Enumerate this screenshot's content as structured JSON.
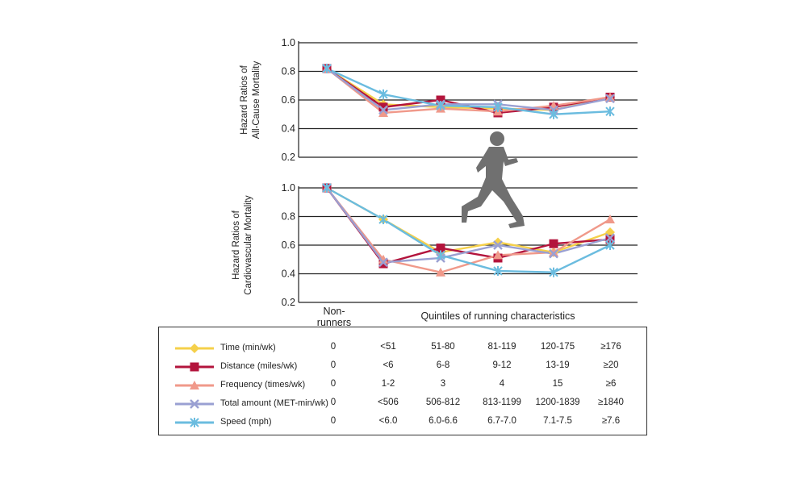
{
  "colors": {
    "time": "#f5d04a",
    "distance": "#b3143c",
    "frequency": "#f0998a",
    "total": "#9aa0d2",
    "speed": "#6bbcdf",
    "runner": "#707070"
  },
  "axis_labels": {
    "x_nonrunners_1": "Non-",
    "x_nonrunners_2": "runners",
    "x_quintiles": "Quintiles of running characteristics"
  },
  "chart_data": [
    {
      "type": "line",
      "ylabel": "Hazard Ratios of All-Cause Mortality",
      "ylabel_line1": "Hazard Ratios of",
      "ylabel_line2": "All-Cause Mortality",
      "yticks": [
        "0.2",
        "0.4",
        "0.6",
        "0.8",
        "1.0"
      ],
      "ylim": [
        0.2,
        1.0
      ],
      "grid": true,
      "x": [
        0,
        1,
        2,
        3,
        4,
        5
      ],
      "series": [
        {
          "name": "Time (min/wk)",
          "key": "time",
          "values": [
            0.82,
            0.57,
            0.55,
            0.54,
            0.53,
            0.62
          ]
        },
        {
          "name": "Distance (miles/wk)",
          "key": "distance",
          "values": [
            0.82,
            0.55,
            0.6,
            0.51,
            0.55,
            0.62
          ]
        },
        {
          "name": "Frequency (times/wk)",
          "key": "frequency",
          "values": [
            0.82,
            0.51,
            0.54,
            0.52,
            0.56,
            0.62
          ]
        },
        {
          "name": "Total amount (MET-min/wk)",
          "key": "total",
          "values": [
            0.82,
            0.53,
            0.57,
            0.57,
            0.53,
            0.61
          ]
        },
        {
          "name": "Speed (mph)",
          "key": "speed",
          "values": [
            0.82,
            0.64,
            0.56,
            0.55,
            0.5,
            0.52
          ]
        }
      ]
    },
    {
      "type": "line",
      "ylabel": "Hazard Ratios of Cardiovascular Mortality",
      "ylabel_line1": "Hazard Ratios of",
      "ylabel_line2": "Cardiovascular Mortality",
      "yticks": [
        "0.2",
        "0.4",
        "0.6",
        "0.8",
        "1.0"
      ],
      "ylim": [
        0.2,
        1.0
      ],
      "grid": true,
      "x": [
        0,
        1,
        2,
        3,
        4,
        5
      ],
      "series": [
        {
          "name": "Time (min/wk)",
          "key": "time",
          "values": [
            1.0,
            0.78,
            0.55,
            0.62,
            0.55,
            0.69
          ]
        },
        {
          "name": "Distance (miles/wk)",
          "key": "distance",
          "values": [
            1.0,
            0.47,
            0.58,
            0.51,
            0.61,
            0.64
          ]
        },
        {
          "name": "Frequency (times/wk)",
          "key": "frequency",
          "values": [
            1.0,
            0.5,
            0.41,
            0.53,
            0.55,
            0.78
          ]
        },
        {
          "name": "Total amount (MET-min/wk)",
          "key": "total",
          "values": [
            1.0,
            0.48,
            0.51,
            0.6,
            0.54,
            0.65
          ]
        },
        {
          "name": "Speed (mph)",
          "key": "speed",
          "values": [
            1.0,
            0.78,
            0.53,
            0.42,
            0.41,
            0.6
          ]
        }
      ]
    }
  ],
  "legend_table": {
    "rows": [
      {
        "key": "time",
        "marker": "diamond",
        "label": "Time (min/wk)",
        "cells": [
          "0",
          "<51",
          "51-80",
          "81-119",
          "120-175",
          "≥176"
        ]
      },
      {
        "key": "distance",
        "marker": "square",
        "label": "Distance (miles/wk)",
        "cells": [
          "0",
          "<6",
          "6-8",
          "9-12",
          "13-19",
          "≥20"
        ]
      },
      {
        "key": "frequency",
        "marker": "triangle",
        "label": "Frequency (times/wk)",
        "cells": [
          "0",
          "1-2",
          "3",
          "4",
          "15",
          "≥6"
        ]
      },
      {
        "key": "total",
        "marker": "x",
        "label": "Total amount (MET-min/wk)",
        "cells": [
          "0",
          "<506",
          "506-812",
          "813-1199",
          "1200-1839",
          "≥1840"
        ]
      },
      {
        "key": "speed",
        "marker": "star",
        "label": "Speed (mph)",
        "cells": [
          "0",
          "<6.0",
          "6.0-6.6",
          "6.7-7.0",
          "7.1-7.5",
          "≥7.6"
        ]
      }
    ]
  }
}
